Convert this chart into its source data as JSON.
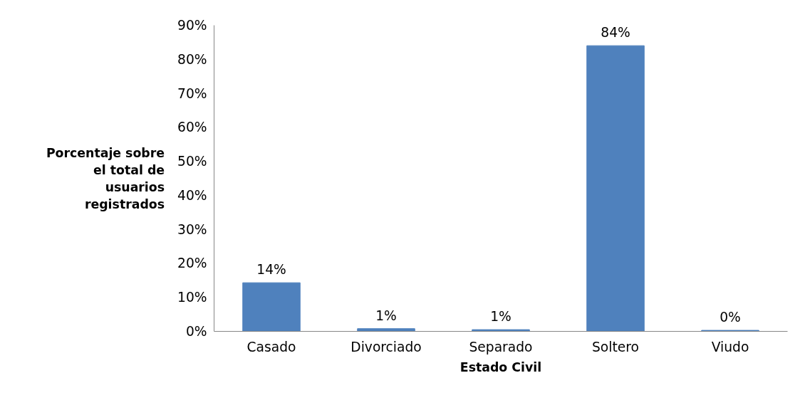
{
  "chart_data": {
    "type": "bar",
    "xlabel": "Estado Civil",
    "ylabel": "Porcentaje sobre el total de usuarios registrados",
    "categories": [
      "Casado",
      "Divorciado",
      "Separado",
      "Soltero",
      "Viudo"
    ],
    "values": [
      14.3,
      0.8,
      0.5,
      84,
      0.3
    ],
    "value_labels": [
      "14%",
      "1%",
      "1%",
      "84%",
      "0%"
    ],
    "color": "#4f81bd",
    "ylim": [
      0,
      90
    ],
    "yticks": [
      {
        "value": 0,
        "label": "0%"
      },
      {
        "value": 10,
        "label": "10%"
      },
      {
        "value": 20,
        "label": "20%"
      },
      {
        "value": 30,
        "label": "30%"
      },
      {
        "value": 40,
        "label": "40%"
      },
      {
        "value": 50,
        "label": "50%"
      },
      {
        "value": 60,
        "label": "60%"
      },
      {
        "value": 70,
        "label": "70%"
      },
      {
        "value": 80,
        "label": "80%"
      },
      {
        "value": 90,
        "label": "90%"
      }
    ],
    "grid": false
  }
}
